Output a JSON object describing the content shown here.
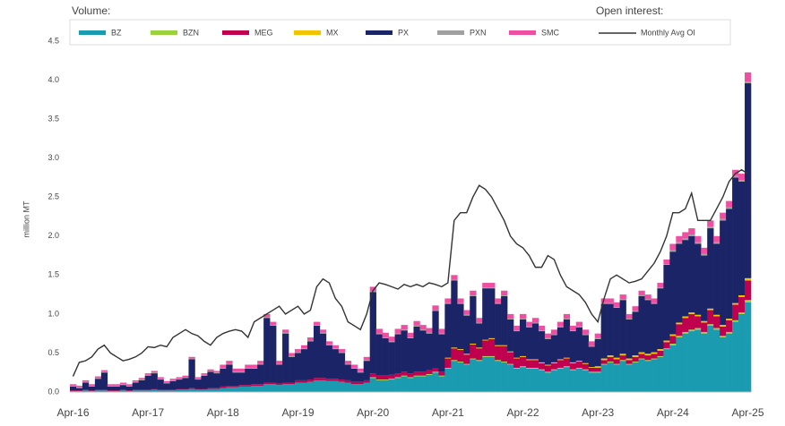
{
  "chart_data": {
    "type": "bar",
    "stacked": true,
    "legend_title": "Volume:",
    "line_legend_title": "Open interest:",
    "y_label": "million MT",
    "ylim": [
      0,
      4.5
    ],
    "yticks": [
      {
        "value": 0,
        "label": "0.0"
      },
      0.5,
      {
        "value": 1,
        "label": "1.0"
      },
      1.5,
      {
        "value": 2,
        "label": "2.0"
      },
      2.5,
      {
        "value": 3,
        "label": "3.0"
      },
      3.5,
      {
        "value": 4,
        "label": "4.0"
      },
      4.5
    ],
    "grid": false,
    "categories": [
      "Apr-16",
      null,
      null,
      null,
      null,
      null,
      null,
      null,
      null,
      null,
      null,
      null,
      "Apr-17",
      null,
      null,
      null,
      null,
      null,
      null,
      null,
      null,
      null,
      null,
      null,
      "Apr-18",
      null,
      null,
      null,
      null,
      null,
      null,
      null,
      null,
      null,
      null,
      null,
      "Apr-19",
      null,
      null,
      null,
      null,
      null,
      null,
      null,
      null,
      null,
      null,
      null,
      "Apr-20",
      null,
      null,
      null,
      null,
      null,
      null,
      null,
      null,
      null,
      null,
      null,
      "Apr-21",
      null,
      null,
      null,
      null,
      null,
      null,
      null,
      null,
      null,
      null,
      null,
      "Apr-22",
      null,
      null,
      null,
      null,
      null,
      null,
      null,
      null,
      null,
      null,
      null,
      "Apr-23",
      null,
      null,
      null,
      null,
      null,
      null,
      null,
      null,
      null,
      null,
      null,
      "Apr-24",
      null,
      null,
      null,
      null,
      null,
      null,
      null,
      null,
      null,
      null,
      null,
      "Apr-25"
    ],
    "series": [
      {
        "name": "BZ",
        "color": "#1a9bb0",
        "values": [
          0.01,
          0.01,
          0.02,
          0.01,
          0.02,
          0.02,
          0.01,
          0.01,
          0.02,
          0.01,
          0.02,
          0.02,
          0.02,
          0.03,
          0.02,
          0.02,
          0.02,
          0.03,
          0.03,
          0.04,
          0.03,
          0.03,
          0.04,
          0.04,
          0.05,
          0.06,
          0.06,
          0.07,
          0.07,
          0.08,
          0.08,
          0.1,
          0.1,
          0.09,
          0.1,
          0.1,
          0.12,
          0.12,
          0.13,
          0.15,
          0.15,
          0.14,
          0.14,
          0.13,
          0.12,
          0.1,
          0.1,
          0.12,
          0.18,
          0.15,
          0.15,
          0.16,
          0.18,
          0.2,
          0.18,
          0.2,
          0.2,
          0.22,
          0.25,
          0.2,
          0.3,
          0.4,
          0.38,
          0.35,
          0.42,
          0.4,
          0.45,
          0.45,
          0.4,
          0.38,
          0.35,
          0.3,
          0.32,
          0.3,
          0.3,
          0.28,
          0.25,
          0.28,
          0.3,
          0.32,
          0.28,
          0.3,
          0.28,
          0.25,
          0.25,
          0.35,
          0.38,
          0.35,
          0.4,
          0.35,
          0.38,
          0.42,
          0.4,
          0.42,
          0.45,
          0.55,
          0.6,
          0.7,
          0.75,
          0.78,
          0.8,
          0.75,
          0.85,
          0.8,
          0.7,
          0.75,
          0.9,
          1.0,
          1.15
        ]
      },
      {
        "name": "BZN",
        "color": "#9ad13c",
        "values": [
          0,
          0,
          0,
          0,
          0,
          0,
          0,
          0,
          0,
          0,
          0,
          0,
          0,
          0,
          0,
          0,
          0,
          0,
          0,
          0,
          0,
          0,
          0,
          0,
          0,
          0,
          0,
          0,
          0,
          0,
          0,
          0,
          0,
          0,
          0,
          0,
          0,
          0,
          0,
          0,
          0,
          0,
          0,
          0,
          0,
          0,
          0,
          0,
          0.01,
          0.01,
          0.01,
          0.01,
          0.01,
          0.01,
          0.01,
          0.01,
          0.01,
          0.01,
          0.01,
          0.01,
          0.01,
          0.01,
          0.01,
          0.01,
          0.01,
          0.01,
          0.01,
          0.01,
          0.01,
          0.01,
          0.01,
          0.01,
          0.01,
          0.01,
          0.01,
          0.01,
          0.01,
          0.01,
          0.01,
          0.01,
          0.01,
          0.01,
          0.01,
          0.01,
          0.01,
          0.01,
          0.01,
          0.01,
          0.01,
          0.01,
          0.01,
          0.01,
          0.01,
          0.01,
          0.01,
          0.01,
          0.02,
          0.02,
          0.02,
          0.02,
          0.02,
          0.02,
          0.02,
          0.02,
          0.02,
          0.02,
          0.02,
          0.02,
          0.03
        ]
      },
      {
        "name": "MEG",
        "color": "#c0004e",
        "values": [
          0.01,
          0.01,
          0.01,
          0.01,
          0.01,
          0.01,
          0.01,
          0.01,
          0.01,
          0.01,
          0.01,
          0.01,
          0.01,
          0.01,
          0.01,
          0.01,
          0.01,
          0.01,
          0.01,
          0.01,
          0.01,
          0.01,
          0.01,
          0.01,
          0.02,
          0.02,
          0.02,
          0.02,
          0.02,
          0.02,
          0.02,
          0.02,
          0.02,
          0.02,
          0.02,
          0.02,
          0.03,
          0.03,
          0.03,
          0.03,
          0.03,
          0.03,
          0.03,
          0.03,
          0.03,
          0.03,
          0.03,
          0.03,
          0.05,
          0.05,
          0.05,
          0.05,
          0.05,
          0.05,
          0.05,
          0.05,
          0.05,
          0.05,
          0.05,
          0.05,
          0.12,
          0.15,
          0.15,
          0.12,
          0.18,
          0.15,
          0.2,
          0.22,
          0.18,
          0.2,
          0.15,
          0.12,
          0.12,
          0.1,
          0.1,
          0.08,
          0.08,
          0.08,
          0.1,
          0.1,
          0.08,
          0.08,
          0.07,
          0.05,
          0.05,
          0.05,
          0.06,
          0.06,
          0.06,
          0.05,
          0.06,
          0.06,
          0.06,
          0.06,
          0.07,
          0.08,
          0.1,
          0.15,
          0.18,
          0.2,
          0.15,
          0.12,
          0.18,
          0.15,
          0.12,
          0.15,
          0.2,
          0.2,
          0.25
        ]
      },
      {
        "name": "MX",
        "color": "#f2c400",
        "values": [
          0,
          0,
          0,
          0,
          0,
          0,
          0,
          0,
          0,
          0,
          0,
          0,
          0,
          0,
          0,
          0,
          0,
          0,
          0,
          0,
          0,
          0,
          0,
          0,
          0,
          0,
          0,
          0,
          0,
          0,
          0,
          0,
          0,
          0,
          0,
          0,
          0,
          0,
          0,
          0,
          0,
          0,
          0,
          0,
          0,
          0,
          0,
          0,
          0,
          0,
          0,
          0,
          0,
          0,
          0,
          0,
          0,
          0,
          0,
          0,
          0.01,
          0.01,
          0.01,
          0.01,
          0.01,
          0.01,
          0.01,
          0.01,
          0.01,
          0.01,
          0.01,
          0.01,
          0.01,
          0.01,
          0.01,
          0.01,
          0.01,
          0.01,
          0.01,
          0.01,
          0.01,
          0.01,
          0.01,
          0.01,
          0.02,
          0.02,
          0.02,
          0.02,
          0.02,
          0.02,
          0.02,
          0.02,
          0.02,
          0.02,
          0.02,
          0.02,
          0.02,
          0.02,
          0.02,
          0.02,
          0.02,
          0.02,
          0.02,
          0.02,
          0.02,
          0.02,
          0.02,
          0.02,
          0.03
        ]
      },
      {
        "name": "PX",
        "color": "#1a2466",
        "values": [
          0.05,
          0.03,
          0.09,
          0.05,
          0.14,
          0.22,
          0.05,
          0.05,
          0.06,
          0.05,
          0.09,
          0.12,
          0.18,
          0.2,
          0.13,
          0.08,
          0.11,
          0.12,
          0.14,
          0.37,
          0.12,
          0.17,
          0.21,
          0.19,
          0.23,
          0.27,
          0.17,
          0.16,
          0.21,
          0.2,
          0.25,
          0.83,
          0.73,
          0.24,
          0.63,
          0.33,
          0.35,
          0.4,
          0.49,
          0.67,
          0.57,
          0.43,
          0.38,
          0.34,
          0.2,
          0.17,
          0.12,
          0.25,
          1.04,
          0.53,
          0.48,
          0.42,
          0.5,
          0.53,
          0.45,
          0.58,
          0.53,
          0.47,
          0.73,
          0.48,
          0.69,
          0.86,
          0.58,
          0.49,
          0.61,
          0.31,
          0.66,
          0.64,
          0.53,
          0.63,
          0.41,
          0.34,
          0.47,
          0.41,
          0.46,
          0.4,
          0.33,
          0.35,
          0.41,
          0.49,
          0.4,
          0.43,
          0.36,
          0.26,
          0.35,
          0.7,
          0.66,
          0.64,
          0.69,
          0.5,
          0.56,
          0.72,
          0.69,
          0.62,
          0.78,
          0.97,
          1.06,
          1.01,
          0.98,
          0.98,
          0.91,
          0.84,
          1.03,
          0.91,
          1.34,
          1.41,
          1.61,
          1.46,
          2.5
        ]
      },
      {
        "name": "PXN",
        "color": "#a0a0a0",
        "values": [
          0.01,
          0.01,
          0.01,
          0.01,
          0.01,
          0.01,
          0.01,
          0.01,
          0.01,
          0.01,
          0.01,
          0.01,
          0.01,
          0.01,
          0.01,
          0.01,
          0.01,
          0.01,
          0.01,
          0.01,
          0.01,
          0.01,
          0.01,
          0.01,
          0.01,
          0.01,
          0.01,
          0.01,
          0.01,
          0.01,
          0.01,
          0.01,
          0.01,
          0.01,
          0.01,
          0.01,
          0.01,
          0.01,
          0.01,
          0.01,
          0.01,
          0.01,
          0.01,
          0.01,
          0.01,
          0.01,
          0.01,
          0.01,
          0.01,
          0.01,
          0.01,
          0.01,
          0.01,
          0.01,
          0.01,
          0.01,
          0.01,
          0.01,
          0.01,
          0.01,
          0.01,
          0.01,
          0.01,
          0.01,
          0.01,
          0.01,
          0.01,
          0.01,
          0.01,
          0.01,
          0.01,
          0.01,
          0.01,
          0.01,
          0.01,
          0.01,
          0.01,
          0.01,
          0.01,
          0.01,
          0.01,
          0.01,
          0.01,
          0.01,
          0.01,
          0.01,
          0.01,
          0.01,
          0.01,
          0.01,
          0.01,
          0.01,
          0.01,
          0.01,
          0.01,
          0.01,
          0.02,
          0.02,
          0.02,
          0.02,
          0.02,
          0.02,
          0.02,
          0.02,
          0.02,
          0.02,
          0.02,
          0.02,
          0.02
        ]
      },
      {
        "name": "SMC",
        "color": "#ee4fa0",
        "values": [
          0.02,
          0.02,
          0.02,
          0.02,
          0.02,
          0.02,
          0.02,
          0.02,
          0.02,
          0.02,
          0.02,
          0.02,
          0.02,
          0.02,
          0.02,
          0.02,
          0.02,
          0.02,
          0.02,
          0.02,
          0.02,
          0.02,
          0.02,
          0.02,
          0.04,
          0.04,
          0.04,
          0.04,
          0.04,
          0.04,
          0.04,
          0.04,
          0.04,
          0.04,
          0.04,
          0.04,
          0.04,
          0.04,
          0.04,
          0.04,
          0.04,
          0.04,
          0.04,
          0.04,
          0.04,
          0.04,
          0.04,
          0.04,
          0.06,
          0.06,
          0.06,
          0.06,
          0.06,
          0.06,
          0.06,
          0.06,
          0.06,
          0.06,
          0.06,
          0.06,
          0.06,
          0.06,
          0.06,
          0.06,
          0.06,
          0.06,
          0.06,
          0.06,
          0.06,
          0.06,
          0.06,
          0.06,
          0.06,
          0.06,
          0.06,
          0.06,
          0.06,
          0.06,
          0.06,
          0.06,
          0.06,
          0.06,
          0.06,
          0.06,
          0.06,
          0.06,
          0.06,
          0.06,
          0.06,
          0.06,
          0.06,
          0.06,
          0.06,
          0.06,
          0.06,
          0.06,
          0.08,
          0.08,
          0.08,
          0.08,
          0.08,
          0.08,
          0.08,
          0.08,
          0.08,
          0.08,
          0.08,
          0.08,
          0.12
        ]
      }
    ],
    "line_series": {
      "name": "Monthly Avg OI",
      "color": "#333333",
      "values": [
        0.2,
        0.38,
        0.4,
        0.45,
        0.55,
        0.6,
        0.5,
        0.45,
        0.4,
        0.42,
        0.45,
        0.5,
        0.58,
        0.57,
        0.6,
        0.58,
        0.7,
        0.75,
        0.8,
        0.75,
        0.72,
        0.65,
        0.6,
        0.7,
        0.75,
        0.78,
        0.8,
        0.78,
        0.7,
        0.9,
        0.95,
        1.0,
        1.05,
        1.1,
        1.0,
        1.05,
        1.1,
        1.0,
        1.05,
        1.35,
        1.45,
        1.4,
        1.2,
        1.1,
        0.9,
        0.85,
        0.8,
        1.0,
        1.3,
        1.4,
        1.38,
        1.35,
        1.32,
        1.38,
        1.35,
        1.38,
        1.35,
        1.4,
        1.38,
        1.35,
        1.4,
        2.2,
        2.3,
        2.3,
        2.5,
        2.65,
        2.6,
        2.5,
        2.35,
        2.2,
        2.0,
        1.9,
        1.85,
        1.75,
        1.6,
        1.6,
        1.75,
        1.7,
        1.5,
        1.35,
        1.3,
        1.25,
        1.15,
        1.0,
        0.9,
        1.2,
        1.45,
        1.5,
        1.45,
        1.4,
        1.42,
        1.45,
        1.55,
        1.65,
        1.8,
        2.0,
        2.3,
        2.3,
        2.35,
        2.55,
        2.2,
        2.2,
        2.2,
        2.35,
        2.5,
        2.7,
        2.8,
        2.85,
        2.8
      ]
    }
  }
}
